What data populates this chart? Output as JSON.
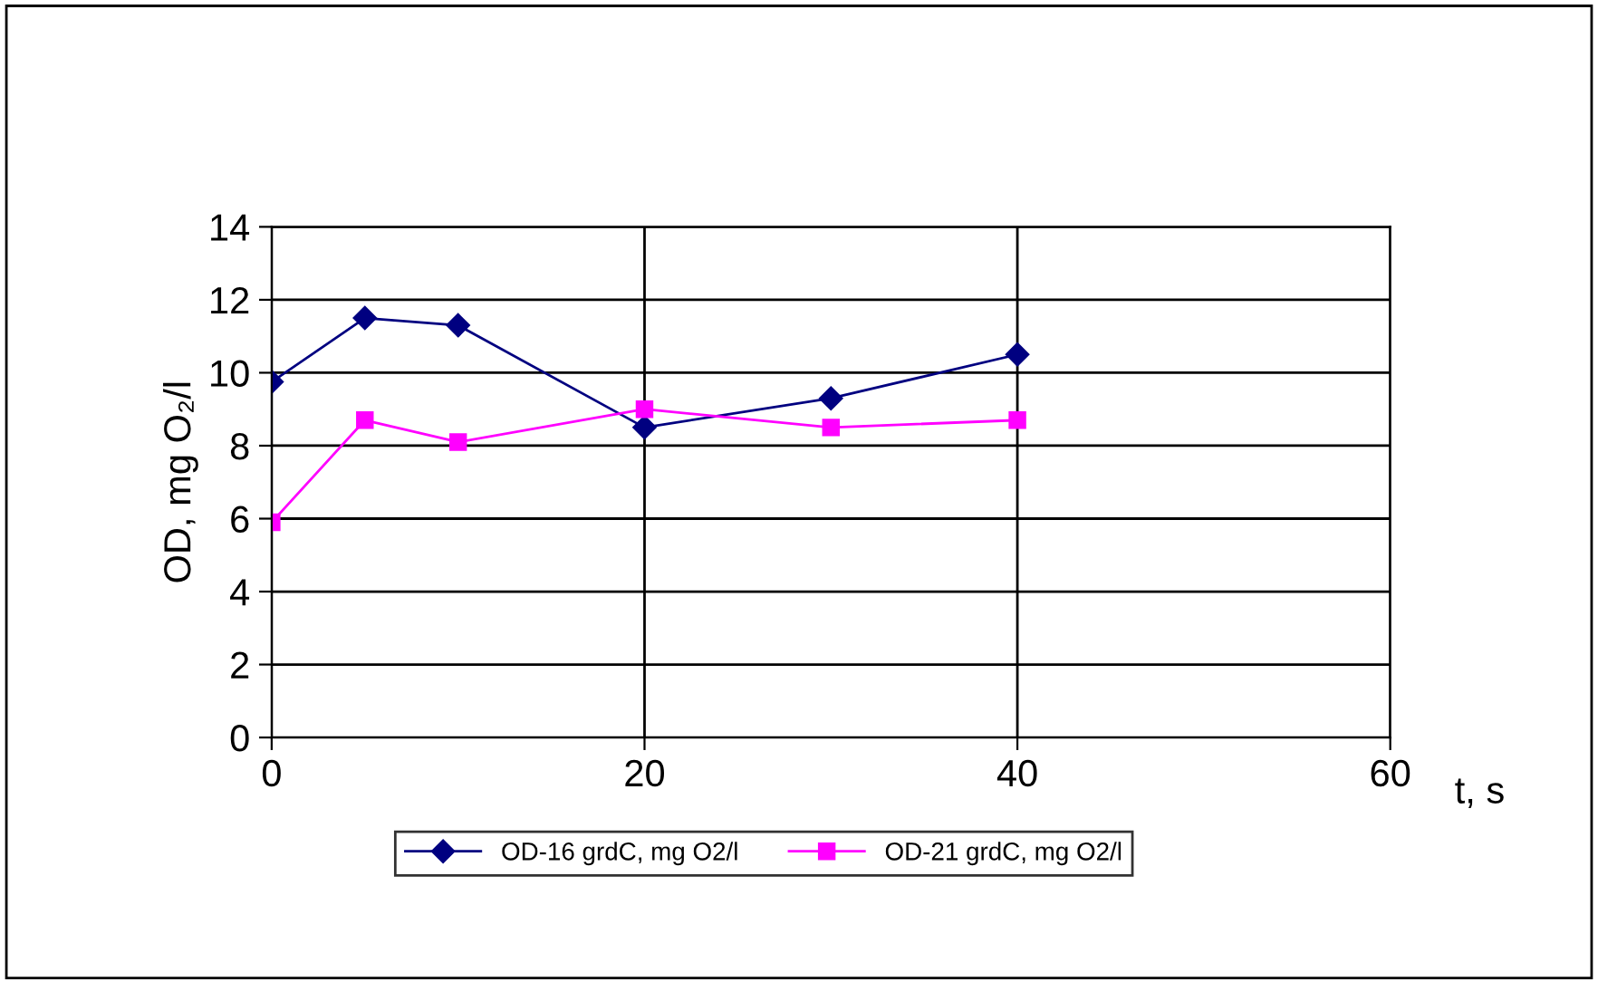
{
  "chart_data": {
    "type": "line",
    "xlabel": "t, s",
    "ylabel": "OD, mg O₂/l",
    "x": [
      0,
      5,
      10,
      20,
      30,
      40
    ],
    "series": [
      {
        "name": "OD-16 grdC, mg O2/l",
        "color": "#000080",
        "marker": "diamond",
        "values": [
          9.75,
          11.5,
          11.3,
          8.5,
          9.3,
          10.5
        ]
      },
      {
        "name": "OD-21 grdC, mg O2/l",
        "color": "#ff00ff",
        "marker": "square",
        "values": [
          5.9,
          8.7,
          8.1,
          9.0,
          8.5,
          8.7
        ]
      }
    ],
    "xlim": [
      0,
      60
    ],
    "xticks": [
      0,
      20,
      40,
      60
    ],
    "ylim": [
      0,
      14
    ],
    "yticks": [
      0,
      2,
      4,
      6,
      8,
      10,
      12,
      14
    ],
    "grid": true,
    "legend": "bottom",
    "line_style": "solid"
  }
}
